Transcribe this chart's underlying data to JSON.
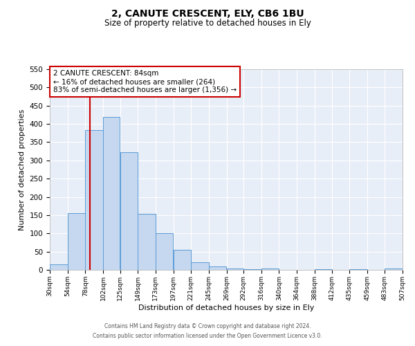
{
  "title": "2, CANUTE CRESCENT, ELY, CB6 1BU",
  "subtitle": "Size of property relative to detached houses in Ely",
  "xlabel": "Distribution of detached houses by size in Ely",
  "ylabel": "Number of detached properties",
  "bar_color": "#c5d8f0",
  "bar_edge_color": "#5b9bd5",
  "background_color": "#e8eef7",
  "grid_color": "#ffffff",
  "annotation_box_color": "#cc0000",
  "vline_color": "#cc0000",
  "vline_x": 84,
  "annotation_line1": "2 CANUTE CRESCENT: 84sqm",
  "annotation_line2": "← 16% of detached houses are smaller (264)",
  "annotation_line3": "83% of semi-detached houses are larger (1,356) →",
  "footnote1": "Contains HM Land Registry data © Crown copyright and database right 2024.",
  "footnote2": "Contains public sector information licensed under the Open Government Licence v3.0.",
  "bin_edges": [
    30,
    54,
    78,
    102,
    125,
    149,
    173,
    197,
    221,
    245,
    269,
    292,
    316,
    340,
    364,
    388,
    412,
    435,
    459,
    483,
    507
  ],
  "bin_heights": [
    15,
    155,
    383,
    420,
    323,
    153,
    100,
    55,
    20,
    10,
    4,
    1,
    3,
    0,
    0,
    1,
    0,
    1,
    0,
    3
  ],
  "ylim": [
    0,
    550
  ],
  "yticks": [
    0,
    50,
    100,
    150,
    200,
    250,
    300,
    350,
    400,
    450,
    500,
    550
  ]
}
